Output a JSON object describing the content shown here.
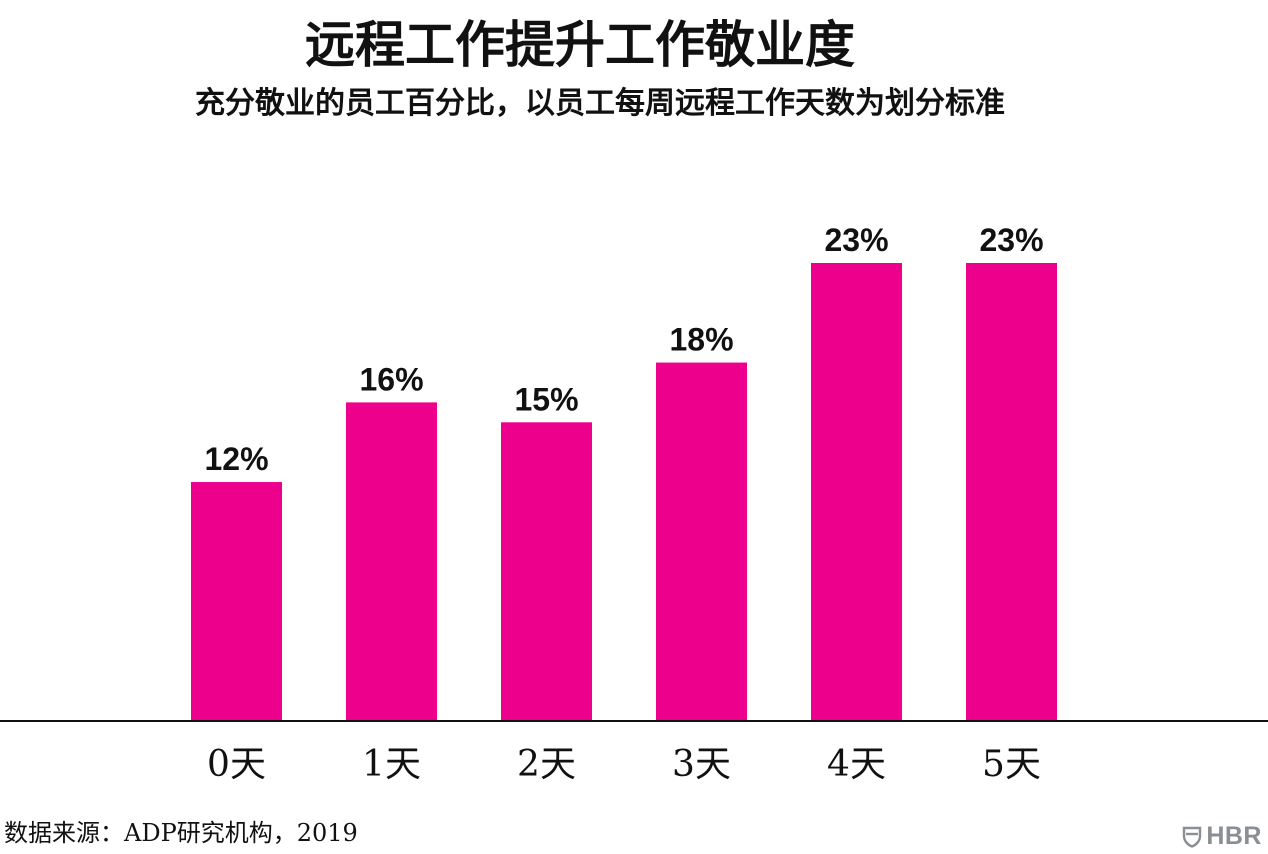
{
  "header": {
    "title": "远程工作提升工作敬业度",
    "subtitle": "充分敬业的员工百分比，以员工每周远程工作天数为划分标准"
  },
  "footer": {
    "source": "数据来源：ADP研究机构，2019",
    "logo": "HBR",
    "logo_icon": "shield-icon"
  },
  "colors": {
    "bar": "#EC008C",
    "axis": "#111111",
    "text": "#111111",
    "logo": "#8a8f94"
  },
  "chart_data": {
    "type": "bar",
    "categories": [
      "0天",
      "1天",
      "2天",
      "3天",
      "4天",
      "5天"
    ],
    "values": [
      12,
      16,
      15,
      18,
      23,
      23
    ],
    "data_labels": [
      "12%",
      "16%",
      "15%",
      "18%",
      "23%",
      "23%"
    ],
    "title": "远程工作提升工作敬业度",
    "subtitle": "充分敬业的员工百分比，以员工每周远程工作天数为划分标准",
    "unit": "%",
    "ylim": [
      0,
      23
    ],
    "grid": false,
    "legend": "none"
  }
}
